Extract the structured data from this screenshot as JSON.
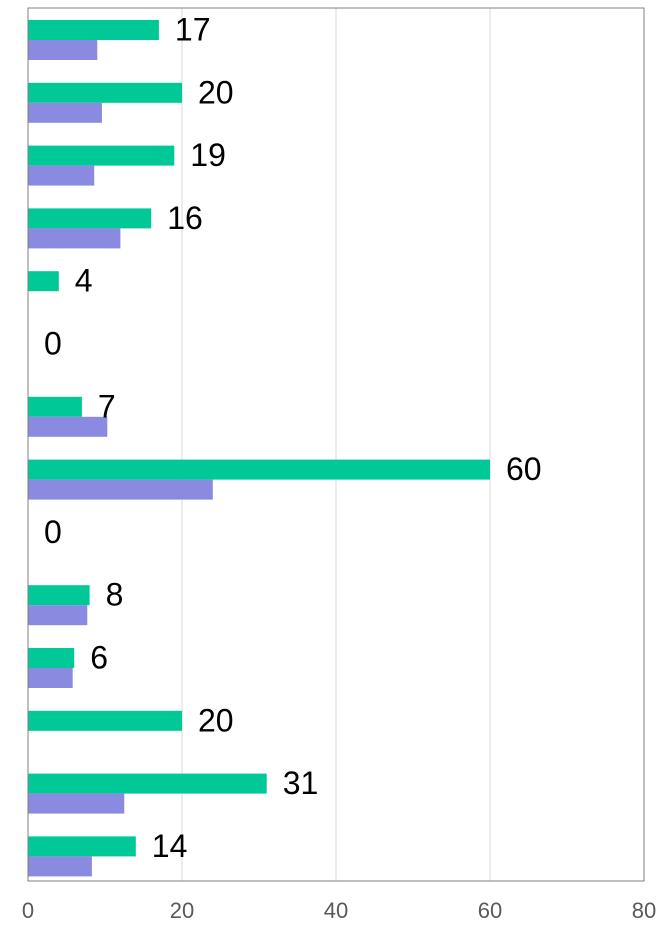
{
  "chart_data": {
    "type": "bar",
    "orientation": "horizontal",
    "xlim": [
      0,
      80
    ],
    "xticks": [
      "0",
      "20",
      "40",
      "60",
      "80"
    ],
    "grid": true,
    "series": [
      {
        "values": [
          17,
          20,
          19,
          16,
          4,
          0,
          7,
          60,
          0,
          8,
          6,
          20,
          31,
          14
        ]
      },
      {
        "values": [
          9,
          9.6,
          8.6,
          12,
          0,
          0,
          10.3,
          24,
          0,
          7.7,
          5.8,
          0,
          12.5,
          8.3
        ]
      }
    ],
    "data_labels": [
      "17",
      "20",
      "19",
      "16",
      "4",
      "0",
      "7",
      "60",
      "0",
      "8",
      "6",
      "20",
      "31",
      "14"
    ],
    "colors": {
      "series1": "#00c896",
      "series2": "#8a8ae0",
      "grid": "#d9d9d9",
      "frame": "#7f7f7f"
    }
  }
}
